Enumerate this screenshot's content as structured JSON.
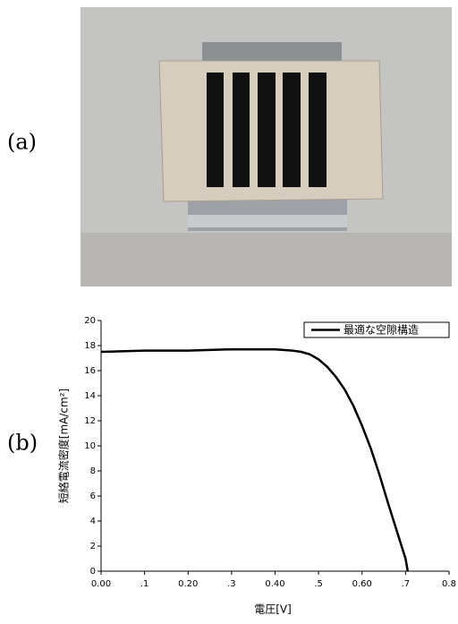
{
  "labels": [
    "(a)",
    "(b)"
  ],
  "chart_data": {
    "type": "line",
    "x_label": "電圧[V]",
    "y_label": "短絡電流密度[mA/cm²]",
    "x": [
      0,
      0.1,
      0.2,
      0.3,
      0.4,
      0.44,
      0.46,
      0.48,
      0.5,
      0.52,
      0.54,
      0.56,
      0.58,
      0.6,
      0.62,
      0.64,
      0.66,
      0.68,
      0.7,
      0.705
    ],
    "series": [
      {
        "name": "最適な空隙構造",
        "color": "#000000",
        "values": [
          17.5,
          17.6,
          17.6,
          17.7,
          17.7,
          17.6,
          17.5,
          17.3,
          16.9,
          16.3,
          15.5,
          14.5,
          13.2,
          11.6,
          9.8,
          7.7,
          5.4,
          3.2,
          1.0,
          0
        ]
      }
    ],
    "xlim": [
      0,
      0.8
    ],
    "xticks": [
      {
        "value": 0,
        "label": "0.00"
      },
      {
        "value": 0.1,
        "label": ".1"
      },
      {
        "value": 0.2,
        "label": "0.20"
      },
      {
        "value": 0.3,
        "label": ".3"
      },
      {
        "value": 0.4,
        "label": "0.40"
      },
      {
        "value": 0.5,
        "label": ".5"
      },
      {
        "value": 0.6,
        "label": "0.60"
      },
      {
        "value": 0.7,
        "label": ".7"
      },
      0.8
    ],
    "ylim": [
      0,
      20
    ],
    "yticks": [
      0,
      2,
      4,
      6,
      8,
      10,
      12,
      14,
      16,
      18,
      20
    ],
    "legend": "upper right"
  }
}
